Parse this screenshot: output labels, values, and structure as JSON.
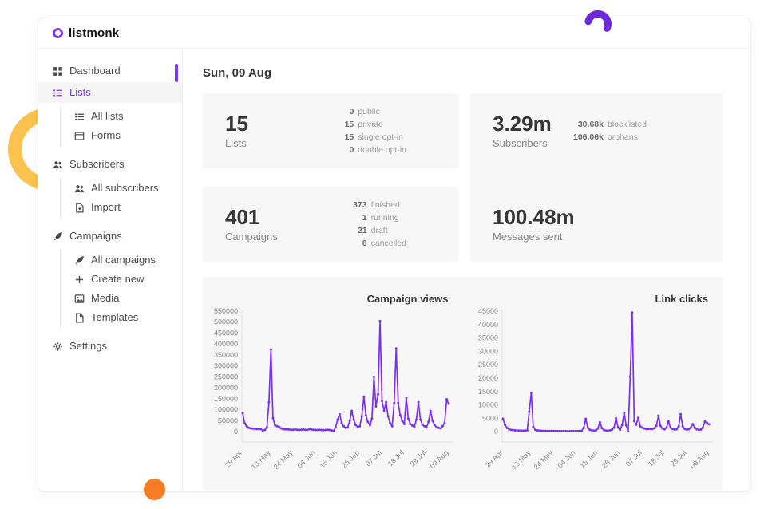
{
  "app": {
    "logo_text": "listmonk"
  },
  "colors": {
    "accent": "#7c3aed",
    "chart_line": "#7b2ff0",
    "card_bg": "#f7f7f7",
    "decor_yellow": "#fbc24f",
    "decor_purple": "#6d28d9",
    "decor_orange": "#f87c24"
  },
  "sidebar": {
    "items": [
      {
        "label": "Dashboard",
        "icon": "dashboard-icon",
        "active": false,
        "children": []
      },
      {
        "label": "Lists",
        "icon": "list-icon",
        "active": true,
        "children": [
          {
            "label": "All lists",
            "icon": "list-icon"
          },
          {
            "label": "Forms",
            "icon": "form-icon"
          }
        ]
      },
      {
        "label": "Subscribers",
        "icon": "users-icon",
        "active": false,
        "children": [
          {
            "label": "All subscribers",
            "icon": "users-icon"
          },
          {
            "label": "Import",
            "icon": "import-icon"
          }
        ]
      },
      {
        "label": "Campaigns",
        "icon": "rocket-icon",
        "active": false,
        "children": [
          {
            "label": "All campaigns",
            "icon": "rocket-icon"
          },
          {
            "label": "Create new",
            "icon": "plus-icon"
          },
          {
            "label": "Media",
            "icon": "media-icon"
          },
          {
            "label": "Templates",
            "icon": "template-icon"
          }
        ]
      },
      {
        "label": "Settings",
        "icon": "gear-icon",
        "active": false,
        "children": []
      }
    ]
  },
  "main": {
    "date_heading": "Sun, 09 Aug",
    "stat_cards": [
      {
        "value": "15",
        "label": "Lists",
        "breakdown": [
          [
            "0",
            "public"
          ],
          [
            "15",
            "private"
          ],
          [
            "15",
            "single opt-in"
          ],
          [
            "0",
            "double opt-in"
          ]
        ]
      },
      {
        "value": "3.29m",
        "label": "Subscribers",
        "breakdown": [
          [
            "30.68k",
            "blocklisted"
          ],
          [
            "106.06k",
            "orphans"
          ]
        ]
      },
      {
        "value": "401",
        "label": "Campaigns",
        "breakdown": [
          [
            "373",
            "finished"
          ],
          [
            "1",
            "running"
          ],
          [
            "21",
            "draft"
          ],
          [
            "6",
            "cancelled"
          ]
        ]
      },
      {
        "value": "100.48m",
        "label": "Messages sent",
        "breakdown": []
      }
    ]
  },
  "chart_data": [
    {
      "type": "line",
      "title": "Campaign views",
      "xlabel": "",
      "ylabel": "",
      "legend": "none",
      "grid": "off",
      "ylim": [
        0,
        550000
      ],
      "ytick_step": 50000,
      "x_tick_labels": [
        "29 Apr",
        "13 May",
        "24 May",
        "04 Jun",
        "15 Jun",
        "26 Jun",
        "07 Jul",
        "18 Jul",
        "29 Jul",
        "09 Aug"
      ],
      "x_tick_indices": [
        0,
        14,
        25,
        36,
        47,
        58,
        69,
        80,
        91,
        102
      ],
      "values": [
        85000,
        38000,
        25000,
        18000,
        15000,
        14000,
        13000,
        12000,
        13000,
        12000,
        5000,
        8000,
        20000,
        135000,
        375000,
        62000,
        30000,
        25000,
        22000,
        15000,
        12000,
        11000,
        10000,
        10000,
        9000,
        9000,
        10000,
        9000,
        8000,
        9000,
        10000,
        9000,
        8000,
        12000,
        10000,
        9000,
        8000,
        8000,
        9000,
        8000,
        7000,
        8000,
        9000,
        8000,
        6000,
        4000,
        20000,
        55000,
        80000,
        40000,
        25000,
        18000,
        20000,
        50000,
        95000,
        55000,
        30000,
        22000,
        25000,
        70000,
        160000,
        75000,
        45000,
        30000,
        60000,
        250000,
        115000,
        170000,
        505000,
        140000,
        95000,
        135000,
        70000,
        40000,
        25000,
        130000,
        380000,
        130000,
        75000,
        50000,
        35000,
        155000,
        60000,
        35000,
        28000,
        22000,
        55000,
        135000,
        55000,
        32000,
        25000,
        20000,
        45000,
        95000,
        50000,
        30000,
        22000,
        18000,
        15000,
        25000,
        40000,
        148000,
        128000
      ]
    },
    {
      "type": "line",
      "title": "Link clicks",
      "xlabel": "",
      "ylabel": "",
      "legend": "none",
      "grid": "off",
      "ylim": [
        0,
        45000
      ],
      "ytick_step": 5000,
      "x_tick_labels": [
        "29 Apr",
        "13 May",
        "24 May",
        "04 Jun",
        "15 Jun",
        "26 Jun",
        "07 Jul",
        "18 Jul",
        "29 Jul",
        "09 Aug"
      ],
      "x_tick_indices": [
        0,
        14,
        25,
        36,
        47,
        58,
        69,
        80,
        91,
        102
      ],
      "values": [
        4800,
        2600,
        1400,
        900,
        700,
        600,
        500,
        450,
        400,
        400,
        350,
        400,
        500,
        7500,
        14500,
        1800,
        700,
        500,
        400,
        350,
        300,
        300,
        280,
        260,
        250,
        250,
        240,
        230,
        230,
        220,
        220,
        210,
        200,
        200,
        250,
        230,
        220,
        210,
        250,
        300,
        1500,
        4800,
        1500,
        700,
        500,
        400,
        450,
        1200,
        3500,
        1300,
        600,
        400,
        400,
        500,
        800,
        1500,
        5000,
        1600,
        700,
        2500,
        7000,
        2400,
        100,
        20500,
        44500,
        4000,
        2600,
        5200,
        2000,
        1500,
        1200,
        1000,
        1000,
        1100,
        1000,
        1300,
        2200,
        6000,
        2200,
        1200,
        900,
        1500,
        3800,
        1500,
        1000,
        800,
        900,
        2000,
        6500,
        2000,
        1100,
        800,
        900,
        1500,
        2800,
        1400,
        900,
        700,
        800,
        1500,
        3800,
        3300,
        2800
      ]
    }
  ]
}
